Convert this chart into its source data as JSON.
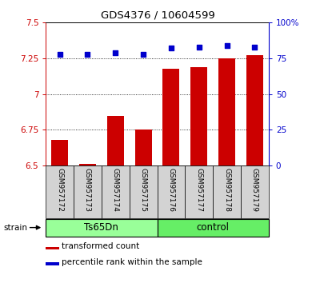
{
  "title": "GDS4376 / 10604599",
  "samples": [
    "GSM957172",
    "GSM957173",
    "GSM957174",
    "GSM957175",
    "GSM957176",
    "GSM957177",
    "GSM957178",
    "GSM957179"
  ],
  "bar_values": [
    6.68,
    6.51,
    6.85,
    6.75,
    7.18,
    7.19,
    7.25,
    7.27
  ],
  "percentile_values": [
    78,
    78,
    79,
    78,
    82,
    83,
    84,
    83
  ],
  "ylim_left": [
    6.5,
    7.5
  ],
  "ylim_right": [
    0,
    100
  ],
  "yticks_left": [
    6.5,
    6.75,
    7.0,
    7.25,
    7.5
  ],
  "ytick_labels_left": [
    "6.5",
    "6.75",
    "7",
    "7.25",
    "7.5"
  ],
  "yticks_right": [
    0,
    25,
    50,
    75,
    100
  ],
  "ytick_labels_right": [
    "0",
    "25",
    "50",
    "75",
    "100%"
  ],
  "gridlines_at": [
    6.75,
    7.0,
    7.25
  ],
  "bar_color": "#cc0000",
  "scatter_color": "#0000cc",
  "group1_label": "Ts65Dn",
  "group2_label": "control",
  "group1_color": "#99ff99",
  "group2_color": "#66ee66",
  "group1_indices": [
    0,
    1,
    2,
    3
  ],
  "group2_indices": [
    4,
    5,
    6,
    7
  ],
  "strain_label": "strain",
  "legend_bar_label": "transformed count",
  "legend_scatter_label": "percentile rank within the sample",
  "bar_bottom": 6.5,
  "bar_width": 0.6,
  "cell_facecolor": "#d3d3d3"
}
